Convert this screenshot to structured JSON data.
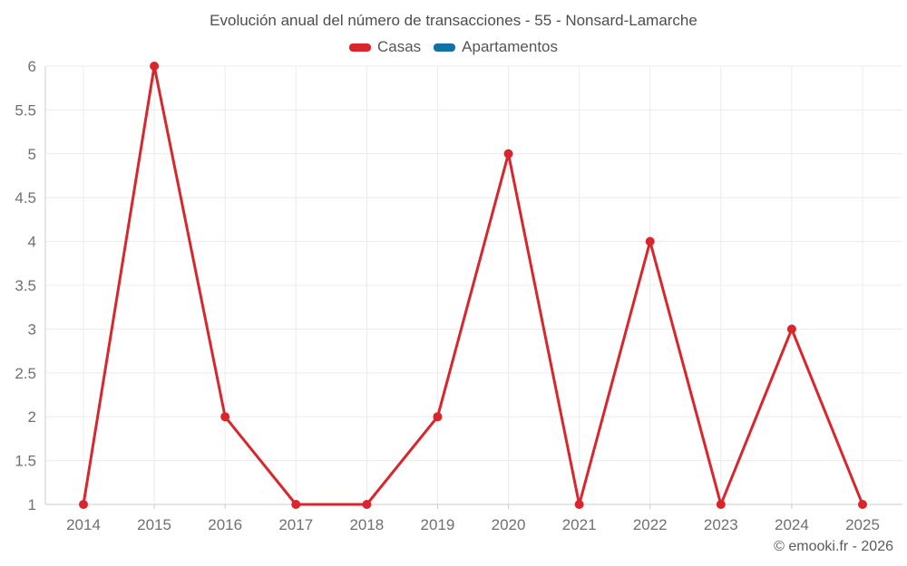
{
  "title": "Evolución anual del número de transacciones - 55 - Nonsard-Lamarche",
  "legend": [
    {
      "label": "Casas",
      "color": "#d9262c"
    },
    {
      "label": "Apartamentos",
      "color": "#1272a5"
    }
  ],
  "attribution": "© emooki.fr - 2026",
  "colors": {
    "grid": "#ececec",
    "axis": "#cccccc",
    "axis_text": "#707070"
  },
  "chart_data": {
    "type": "line",
    "title": "Evolución anual del número de transacciones - 55 - Nonsard-Lamarche",
    "x": [
      2014,
      2015,
      2016,
      2017,
      2018,
      2019,
      2020,
      2021,
      2022,
      2023,
      2024,
      2025
    ],
    "series": [
      {
        "name": "Casas",
        "color": "#d9262c",
        "values": [
          1,
          6,
          2,
          1,
          1,
          2,
          5,
          1,
          4,
          1,
          3,
          1
        ]
      },
      {
        "name": "Apartamentos",
        "color": "#1272a5",
        "values": []
      }
    ],
    "xlabel": "",
    "ylabel": "",
    "ylim": [
      1,
      6
    ],
    "yticks": [
      1,
      1.5,
      2,
      2.5,
      3,
      3.5,
      4,
      4.5,
      5,
      5.5,
      6
    ],
    "grid": true,
    "legend_position": "top",
    "marker": "circle"
  }
}
